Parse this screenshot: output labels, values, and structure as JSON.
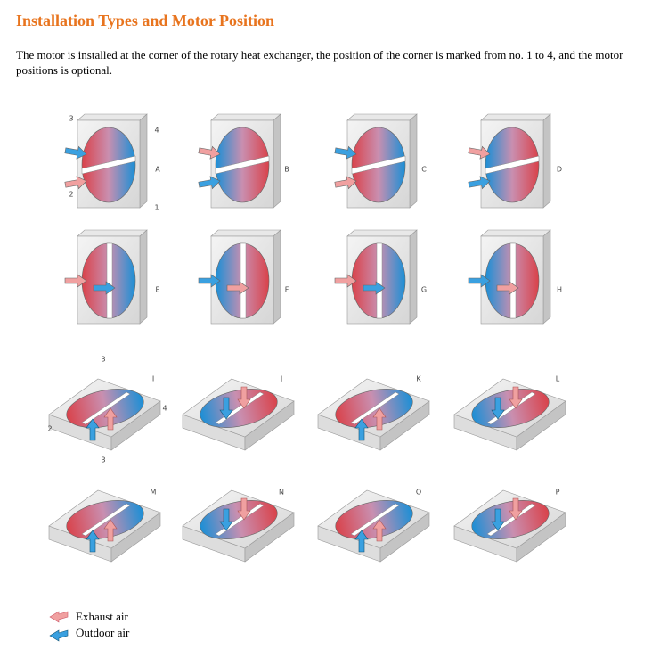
{
  "header": {
    "title": "Installation Types and Motor Position"
  },
  "description": "The motor is installed at the corner of the rotary heat exchanger, the position of the corner is marked from no. 1 to 4, and the motor positions is optional.",
  "diagrams": [
    {
      "label": "A"
    },
    {
      "label": "B"
    },
    {
      "label": "C"
    },
    {
      "label": "D"
    },
    {
      "label": "E"
    },
    {
      "label": "F"
    },
    {
      "label": "G"
    },
    {
      "label": "H"
    },
    {
      "label": "I"
    },
    {
      "label": "J"
    },
    {
      "label": "K"
    },
    {
      "label": "L"
    },
    {
      "label": "M"
    },
    {
      "label": "N"
    },
    {
      "label": "O"
    },
    {
      "label": "P"
    }
  ],
  "corner_numbers": {
    "vertical": [
      "3",
      "4",
      "2",
      "1"
    ],
    "horizontal": [
      "3",
      "4",
      "2",
      "3"
    ]
  },
  "legend": [
    {
      "label": "Exhaust air"
    },
    {
      "label": "Outdoor air"
    }
  ]
}
